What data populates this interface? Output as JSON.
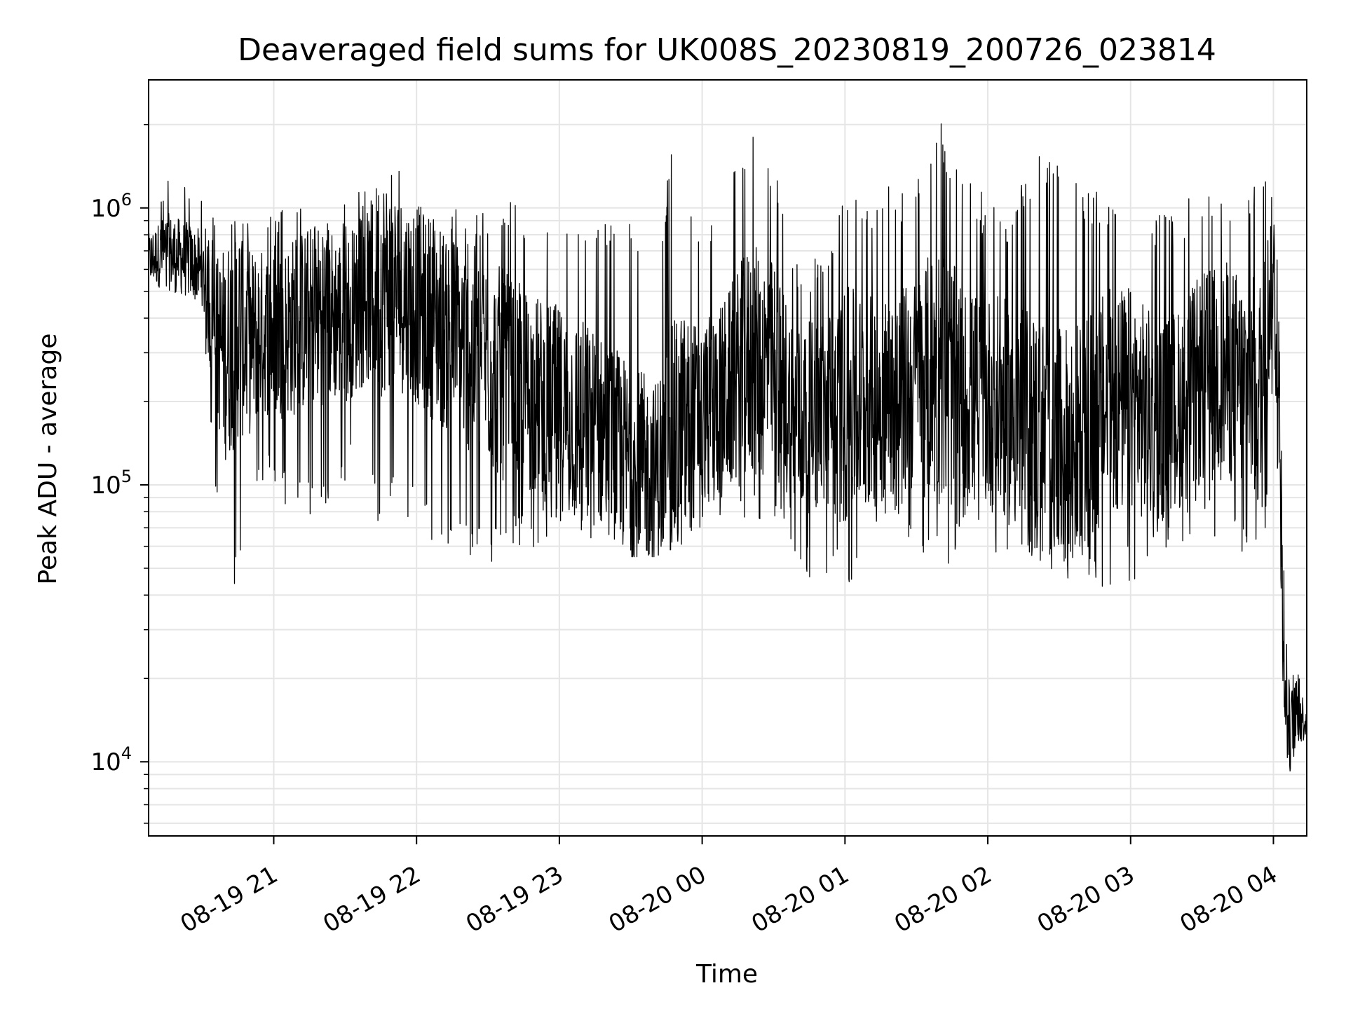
{
  "chart_data": {
    "type": "line",
    "title": "Deaveraged field sums for UK008S_20230819_200726_023814",
    "xlabel": "Time",
    "ylabel": "Peak ADU - average",
    "yscale": "log",
    "ylim": [
      5400,
      2900000
    ],
    "xlim": [
      "2023-08-19 20:07:26",
      "2023-08-20 04:14:00"
    ],
    "grid": true,
    "line_color": "#000000",
    "grid_color": "#e5e5e5",
    "x_ticks": [
      {
        "value": "2023-08-19 21:00",
        "label": "08-19 21"
      },
      {
        "value": "2023-08-19 22:00",
        "label": "08-19 22"
      },
      {
        "value": "2023-08-19 23:00",
        "label": "08-19 23"
      },
      {
        "value": "2023-08-20 00:00",
        "label": "08-20 00"
      },
      {
        "value": "2023-08-20 01:00",
        "label": "08-20 01"
      },
      {
        "value": "2023-08-20 02:00",
        "label": "08-20 02"
      },
      {
        "value": "2023-08-20 03:00",
        "label": "08-20 03"
      },
      {
        "value": "2023-08-20 04:00",
        "label": "08-20 04"
      }
    ],
    "y_ticks": [
      {
        "value": 10000,
        "base": "10",
        "exp": "4"
      },
      {
        "value": 100000,
        "base": "10",
        "exp": "5"
      },
      {
        "value": 1000000,
        "base": "10",
        "exp": "6"
      }
    ],
    "series": [
      {
        "x": [
          "2023-08-19 20:07",
          "2023-08-19 20:15",
          "2023-08-19 20:25",
          "2023-08-19 20:30",
          "2023-08-19 20:35",
          "2023-08-19 20:40",
          "2023-08-19 20:45",
          "2023-08-19 20:50",
          "2023-08-19 20:55",
          "2023-08-19 21:00",
          "2023-08-19 21:10",
          "2023-08-19 21:20",
          "2023-08-19 21:30",
          "2023-08-19 21:40",
          "2023-08-19 21:45",
          "2023-08-19 21:50",
          "2023-08-19 22:00",
          "2023-08-19 22:10",
          "2023-08-19 22:20",
          "2023-08-19 22:30",
          "2023-08-19 22:40",
          "2023-08-19 22:50",
          "2023-08-19 23:00",
          "2023-08-19 23:10",
          "2023-08-19 23:20",
          "2023-08-19 23:30",
          "2023-08-19 23:40",
          "2023-08-19 23:50",
          "2023-08-20 00:00",
          "2023-08-20 00:10",
          "2023-08-20 00:20",
          "2023-08-20 00:30",
          "2023-08-20 00:40",
          "2023-08-20 00:50",
          "2023-08-20 01:00",
          "2023-08-20 01:10",
          "2023-08-20 01:20",
          "2023-08-20 01:30",
          "2023-08-20 01:40",
          "2023-08-20 01:50",
          "2023-08-20 02:00",
          "2023-08-20 02:10",
          "2023-08-20 02:20",
          "2023-08-20 02:30",
          "2023-08-20 02:40",
          "2023-08-20 02:50",
          "2023-08-20 03:00",
          "2023-08-20 03:10",
          "2023-08-20 03:20",
          "2023-08-20 03:30",
          "2023-08-20 03:40",
          "2023-08-20 03:50",
          "2023-08-20 03:55",
          "2023-08-20 04:00",
          "2023-08-20 04:02",
          "2023-08-20 04:05",
          "2023-08-20 04:07",
          "2023-08-20 04:10",
          "2023-08-20 04:14"
        ],
        "y": [
          650000,
          700000,
          640000,
          590000,
          350000,
          300000,
          380000,
          330000,
          360000,
          350000,
          380000,
          420000,
          400000,
          480000,
          550000,
          520000,
          450000,
          380000,
          320000,
          280000,
          230000,
          210000,
          190000,
          170000,
          150000,
          120000,
          110000,
          150000,
          180000,
          210000,
          280000,
          260000,
          170000,
          180000,
          190000,
          200000,
          210000,
          230000,
          260000,
          200000,
          200000,
          180000,
          150000,
          130000,
          150000,
          190000,
          200000,
          170000,
          190000,
          240000,
          260000,
          220000,
          210000,
          700000,
          180000,
          14000,
          13000,
          15000,
          14000
        ],
        "high": [
          1000000,
          1400000,
          1350000,
          1100000,
          950000,
          900000,
          1100000,
          950000,
          1000000,
          1000000,
          1000000,
          1050000,
          1050000,
          1250000,
          1550000,
          1450000,
          1150000,
          1050000,
          1000000,
          1000000,
          1050000,
          1000000,
          1100000,
          1050000,
          950000,
          900000,
          700000,
          2200000,
          800000,
          1300000,
          1900000,
          1450000,
          700000,
          650000,
          1150000,
          1150000,
          1200000,
          1250000,
          2050000,
          1300000,
          1100000,
          1050000,
          1650000,
          1400000,
          1300000,
          1100000,
          1100000,
          1000000,
          1000000,
          1300000,
          1250000,
          1100000,
          1500000,
          1300000,
          600000,
          28000,
          27000,
          25000,
          20000
        ],
        "low": [
          500000,
          480000,
          470000,
          420000,
          110000,
          42000,
          42000,
          70000,
          100000,
          95000,
          75000,
          80000,
          100000,
          110000,
          60000,
          90000,
          70000,
          60000,
          55000,
          50000,
          55000,
          60000,
          65000,
          60000,
          65000,
          55000,
          55000,
          60000,
          68000,
          80000,
          70000,
          65000,
          47000,
          46000,
          40000,
          55000,
          70000,
          60000,
          47000,
          55000,
          55000,
          45000,
          42000,
          45000,
          48000,
          40000,
          44000,
          55000,
          62000,
          65000,
          60000,
          50000,
          42000,
          200000,
          45000,
          7000,
          8500,
          10000,
          12000
        ]
      }
    ]
  }
}
